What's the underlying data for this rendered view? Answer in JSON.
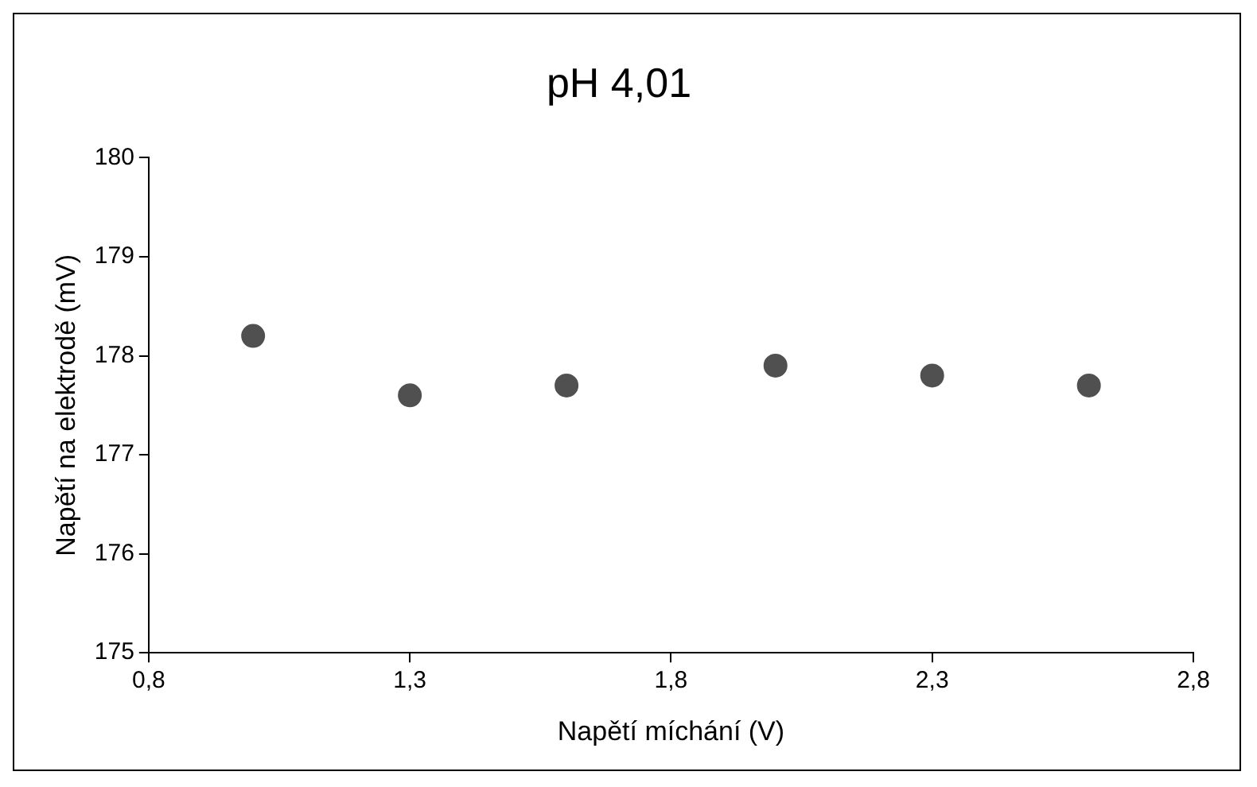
{
  "chart_data": {
    "type": "scatter",
    "title": "pH 4,01",
    "xlabel": "Napětí míchání (V)",
    "ylabel": "Napětí na elektrodě (mV)",
    "x": [
      1.0,
      1.3,
      1.6,
      2.0,
      2.3,
      2.6
    ],
    "series": [
      {
        "color": "#505050",
        "values": [
          178.2,
          177.6,
          177.7,
          177.9,
          177.8,
          177.7
        ]
      }
    ],
    "xlim": [
      0.8,
      2.8
    ],
    "xticks": [
      {
        "value": 0.8,
        "label": "0,8"
      },
      {
        "value": 1.3,
        "label": "1,3"
      },
      {
        "value": 1.8,
        "label": "1,8"
      },
      {
        "value": 2.3,
        "label": "2,3"
      },
      {
        "value": 2.8,
        "label": "2,8"
      }
    ],
    "ylim": [
      175,
      180
    ],
    "yticks": [
      175,
      176,
      177,
      178,
      179,
      180
    ],
    "grid": false,
    "legend": false,
    "marker": "circle"
  }
}
